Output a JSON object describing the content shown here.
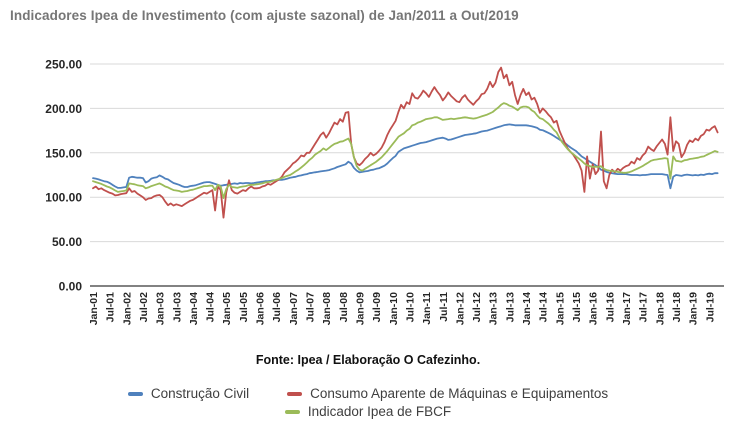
{
  "title": "Indicadores Ipea de Investimento (com ajuste sazonal) de Jan/2011 a Out/2019",
  "source_note": "Fonte: Ipea / Elaboração O Cafezinho.",
  "colors": {
    "construcao_civil": "#4F81BD",
    "consumo_aparente": "#C0504D",
    "fbcf": "#9BBB59",
    "grid": "#D9D9D9",
    "axis": "#595959",
    "tick_text": "#262626",
    "title_text": "#767676"
  },
  "chart_data": {
    "type": "line",
    "title": "Indicadores Ipea de Investimento (com ajuste sazonal) de Jan/2011 a Out/2019",
    "xlabel": "",
    "ylabel": "",
    "ylim": [
      0,
      250
    ],
    "grid": true,
    "legend_position": "bottom",
    "y_ticks": [
      "0.00",
      "50.00",
      "100.00",
      "150.00",
      "200.00",
      "250.00"
    ],
    "x_tick_labels": [
      "Jan-01",
      "Jul-01",
      "Jan-02",
      "Jul-02",
      "Jan-03",
      "Jul-03",
      "Jan-04",
      "Jul-04",
      "Jan-05",
      "Jul-05",
      "Jan-06",
      "Jul-06",
      "Jan-07",
      "Jul-07",
      "Jan-08",
      "Jul-08",
      "Jan-09",
      "Jul-09",
      "Jan-10",
      "Jul-10",
      "Jan-11",
      "Jul-11",
      "Jan-12",
      "Jul-12",
      "Jan-13",
      "Jul-13",
      "Jan-14",
      "Jul-14",
      "Jan-15",
      "Jul-15",
      "Jan-16",
      "Jul-16",
      "Jan-17",
      "Jul-17",
      "Jan-18",
      "Jul-18",
      "Jan-19",
      "Jul-19"
    ],
    "x_frequency": "monthly",
    "series": [
      {
        "name": "Construção Civil",
        "color": "#4F81BD",
        "values": [
          121.5,
          121,
          120,
          119,
          118,
          117.5,
          116,
          114,
          112,
          110.5,
          110.5,
          111,
          111.5,
          122,
          123,
          122.5,
          122,
          122,
          121.5,
          116.5,
          118,
          121,
          122,
          122.5,
          124.5,
          123,
          121,
          120,
          118,
          116,
          115,
          114,
          112.5,
          111.5,
          111.5,
          112.5,
          113,
          113.5,
          114.5,
          115.5,
          116.5,
          117,
          117,
          116,
          115,
          114,
          113,
          113.5,
          114,
          114.5,
          115,
          115.5,
          115,
          116,
          115.5,
          116,
          116,
          115.5,
          116,
          116.5,
          117,
          117.5,
          118,
          118,
          118.5,
          119,
          119,
          119.5,
          119.5,
          120,
          121,
          122,
          122.5,
          123,
          124,
          124.5,
          125.5,
          126,
          127,
          127.5,
          128,
          128.5,
          129,
          129.5,
          130,
          130.5,
          131.5,
          132.5,
          134,
          135,
          136,
          137,
          140,
          138,
          133,
          130,
          128,
          128.5,
          129,
          129.5,
          130.5,
          131,
          132,
          132.5,
          134,
          135.5,
          138,
          141,
          144,
          146.5,
          151,
          153,
          155,
          156,
          157,
          158,
          159,
          160,
          161,
          161.5,
          162,
          163,
          164,
          165,
          166,
          166.5,
          167,
          166,
          164.5,
          165,
          166,
          167,
          168,
          169,
          170,
          170.5,
          171,
          171.5,
          172,
          173,
          174,
          174.5,
          175,
          176,
          177,
          178,
          179,
          180,
          181,
          181.5,
          182,
          181.5,
          181,
          181,
          181,
          181,
          181,
          180.5,
          180,
          179,
          178,
          176,
          175.5,
          174,
          172.5,
          171,
          169,
          167,
          165,
          163,
          161,
          158.5,
          156,
          154,
          152,
          149,
          146,
          144,
          142,
          140,
          138,
          136,
          134,
          131,
          130,
          128.5,
          127.5,
          127,
          126.5,
          126,
          126,
          126,
          126,
          125.5,
          125,
          125,
          125,
          124.5,
          125,
          125,
          125.5,
          126,
          126,
          126,
          126,
          126,
          125.5,
          125,
          110,
          123,
          125,
          124.5,
          124,
          125,
          125.5,
          125,
          124.5,
          125,
          124.5,
          125.5,
          125,
          126,
          126.5,
          126,
          127,
          127
        ]
      },
      {
        "name": "Consumo Aparente de Máquinas e Equipamentos",
        "color": "#C0504D",
        "values": [
          110,
          112,
          109,
          110,
          108,
          106.5,
          105,
          104,
          102,
          102.5,
          103.5,
          104,
          104.5,
          110,
          106,
          107,
          104,
          102,
          100,
          97,
          98.5,
          99,
          101,
          102,
          102.5,
          100,
          95,
          91,
          93,
          90.5,
          92,
          91,
          90,
          92,
          94,
          96,
          97,
          99,
          101,
          103,
          105,
          104,
          106,
          108,
          85,
          112,
          108,
          77,
          105,
          119,
          108,
          105,
          104,
          106,
          108,
          107,
          110,
          112,
          110,
          110,
          110.5,
          112,
          113,
          115,
          114,
          116,
          118,
          120,
          123,
          128,
          131,
          134,
          138,
          140,
          143,
          147,
          146,
          150,
          150,
          155,
          160,
          165,
          170,
          173,
          167,
          172,
          178,
          184,
          182,
          188,
          185,
          195,
          196,
          160,
          145,
          138,
          136,
          139,
          143,
          146,
          150,
          147,
          149,
          152,
          156,
          162,
          170,
          176,
          181,
          186,
          196,
          204,
          200,
          207,
          205,
          217,
          212,
          211,
          215,
          220,
          217,
          213,
          219,
          224,
          219,
          215,
          209,
          213,
          218,
          214,
          211,
          208,
          207,
          212,
          215,
          210,
          207,
          204,
          208,
          211,
          216,
          217,
          222,
          230,
          224,
          229,
          241,
          246,
          234,
          238,
          226,
          230,
          215,
          205,
          215,
          222,
          215,
          218,
          210,
          212,
          205,
          195,
          200,
          197,
          193,
          190,
          184,
          186,
          175,
          168,
          161,
          155,
          151,
          148,
          143,
          138,
          130,
          106,
          146,
          121,
          137,
          126,
          130,
          174,
          118,
          110,
          125,
          131,
          128,
          132,
          130,
          133,
          135,
          136,
          140,
          138,
          144,
          142,
          147,
          150,
          157,
          154,
          152,
          157,
          161,
          165,
          160,
          148,
          190,
          152,
          163,
          160,
          145,
          150,
          159,
          164,
          162,
          166,
          164,
          169,
          171,
          176,
          175,
          178,
          180,
          173
        ]
      },
      {
        "name": "Indicador Ipea de FBCF",
        "color": "#9BBB59",
        "values": [
          118,
          117,
          116,
          115,
          113.5,
          112,
          111,
          109.5,
          107.5,
          106,
          106.5,
          107,
          107.5,
          115.5,
          115,
          114.5,
          113.5,
          113,
          112.5,
          110,
          111,
          112.5,
          113.5,
          114.5,
          115.5,
          114,
          112,
          111,
          109.5,
          108,
          107.5,
          107,
          106,
          106.5,
          107,
          108,
          108.5,
          109.5,
          110.5,
          111.5,
          112.5,
          112.5,
          113,
          113,
          108,
          114,
          112,
          99,
          109,
          114,
          111.5,
          111,
          110.5,
          111.5,
          112,
          112.5,
          113.5,
          114,
          114,
          114.5,
          115,
          115.5,
          116.5,
          117,
          117.5,
          118.5,
          119.5,
          120.5,
          121.5,
          123,
          124,
          125,
          127,
          129,
          131,
          133.5,
          136,
          139,
          142,
          144.5,
          148,
          150,
          152,
          155,
          153,
          155.5,
          158,
          160,
          161,
          162.5,
          163,
          164.5,
          166,
          160,
          145,
          135,
          131,
          130,
          132,
          134,
          136,
          138,
          140,
          142.5,
          145,
          148.5,
          152,
          156,
          160,
          164,
          168,
          170,
          172,
          175,
          177,
          181,
          182,
          184,
          185,
          186.5,
          188,
          188.5,
          189,
          190,
          190,
          188.5,
          187,
          187.5,
          188,
          188.5,
          188,
          188.5,
          189,
          189.5,
          190,
          189.5,
          189,
          188.5,
          189,
          190,
          191,
          192,
          193,
          194.5,
          196,
          198.5,
          201,
          204,
          206,
          205,
          203,
          202,
          200,
          198,
          201,
          202,
          202,
          201,
          198,
          196,
          192,
          189,
          188,
          185.5,
          183,
          180,
          176,
          173,
          167,
          162,
          158,
          154,
          151,
          148.5,
          146,
          143.5,
          141,
          138,
          136,
          135,
          134,
          134.5,
          134,
          135,
          132,
          130.5,
          130,
          129.5,
          129,
          128.5,
          128,
          127.5,
          127.5,
          128,
          129,
          130.5,
          132,
          133.5,
          135,
          137,
          139,
          141,
          142,
          142.5,
          143,
          143.5,
          144,
          143.5,
          121,
          146,
          141,
          140.5,
          140,
          141.5,
          142,
          143,
          143.5,
          144,
          144.5,
          145.5,
          146,
          147.5,
          149,
          150.5,
          152,
          151
        ]
      }
    ]
  }
}
